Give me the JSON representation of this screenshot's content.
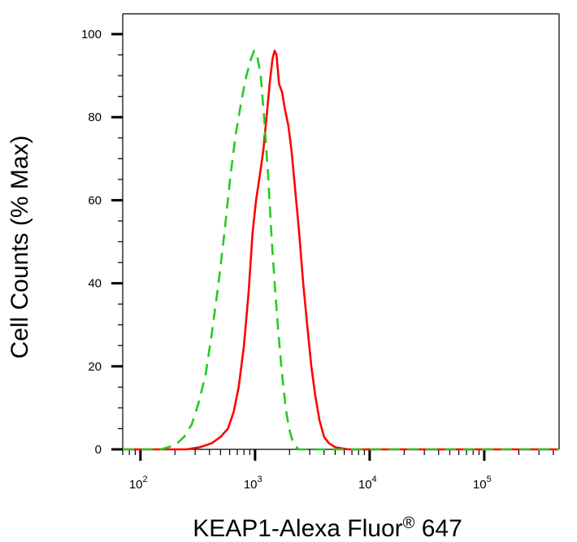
{
  "chart_data": {
    "type": "line",
    "title": "",
    "xlabel": "KEAP1-Alexa Fluor",
    "xlabel_mark": "®",
    "xlabel_suffix": " 647",
    "ylabel": "Cell Counts (% Max)",
    "x_scale": "log",
    "xlim": [
      70,
      450000
    ],
    "ylim": [
      0,
      100
    ],
    "x_ticks": [
      {
        "value": 100,
        "base": "10",
        "exp": "2"
      },
      {
        "value": 1000,
        "base": "10",
        "exp": "3"
      },
      {
        "value": 10000,
        "base": "10",
        "exp": "4"
      },
      {
        "value": 100000,
        "base": "10",
        "exp": "5"
      }
    ],
    "y_ticks": [
      {
        "value": 0,
        "label": "0"
      },
      {
        "value": 20,
        "label": "20"
      },
      {
        "value": 40,
        "label": "40"
      },
      {
        "value": 60,
        "label": "60"
      },
      {
        "value": 80,
        "label": "80"
      },
      {
        "value": 100,
        "label": "100"
      }
    ],
    "grid": false,
    "legend": "none",
    "series": [
      {
        "style": "solid",
        "color": "#ff0000",
        "points": [
          [
            70,
            0
          ],
          [
            150,
            0
          ],
          [
            250,
            0
          ],
          [
            330,
            0.5
          ],
          [
            420,
            1.5
          ],
          [
            500,
            3
          ],
          [
            580,
            5
          ],
          [
            650,
            9
          ],
          [
            720,
            15
          ],
          [
            800,
            25
          ],
          [
            880,
            38
          ],
          [
            950,
            52
          ],
          [
            1020,
            60
          ],
          [
            1100,
            66
          ],
          [
            1180,
            72
          ],
          [
            1260,
            80
          ],
          [
            1340,
            88
          ],
          [
            1420,
            94
          ],
          [
            1480,
            96
          ],
          [
            1540,
            95
          ],
          [
            1620,
            88
          ],
          [
            1720,
            86
          ],
          [
            1820,
            82
          ],
          [
            1950,
            78
          ],
          [
            2080,
            72
          ],
          [
            2250,
            62
          ],
          [
            2430,
            52
          ],
          [
            2630,
            40
          ],
          [
            2850,
            30
          ],
          [
            3100,
            20
          ],
          [
            3350,
            13
          ],
          [
            3650,
            7
          ],
          [
            4000,
            3
          ],
          [
            4400,
            1.5
          ],
          [
            5000,
            0.5
          ],
          [
            6500,
            0
          ],
          [
            20000,
            0
          ],
          [
            100000,
            0
          ],
          [
            450000,
            0
          ]
        ]
      },
      {
        "style": "dashed",
        "color": "#22cc22",
        "points": [
          [
            70,
            0
          ],
          [
            110,
            0
          ],
          [
            150,
            0
          ],
          [
            200,
            1
          ],
          [
            240,
            3
          ],
          [
            280,
            6
          ],
          [
            320,
            11
          ],
          [
            370,
            18
          ],
          [
            420,
            28
          ],
          [
            480,
            40
          ],
          [
            540,
            52
          ],
          [
            610,
            66
          ],
          [
            680,
            76
          ],
          [
            760,
            84
          ],
          [
            840,
            90
          ],
          [
            920,
            94
          ],
          [
            980,
            96
          ],
          [
            1040,
            95
          ],
          [
            1120,
            90
          ],
          [
            1200,
            80
          ],
          [
            1300,
            66
          ],
          [
            1400,
            50
          ],
          [
            1500,
            38
          ],
          [
            1600,
            28
          ],
          [
            1720,
            18
          ],
          [
            1850,
            10
          ],
          [
            1980,
            5
          ],
          [
            2150,
            1.5
          ],
          [
            2400,
            0
          ],
          [
            3500,
            0
          ],
          [
            20000,
            0
          ],
          [
            100000,
            0
          ],
          [
            450000,
            0
          ]
        ]
      }
    ]
  }
}
